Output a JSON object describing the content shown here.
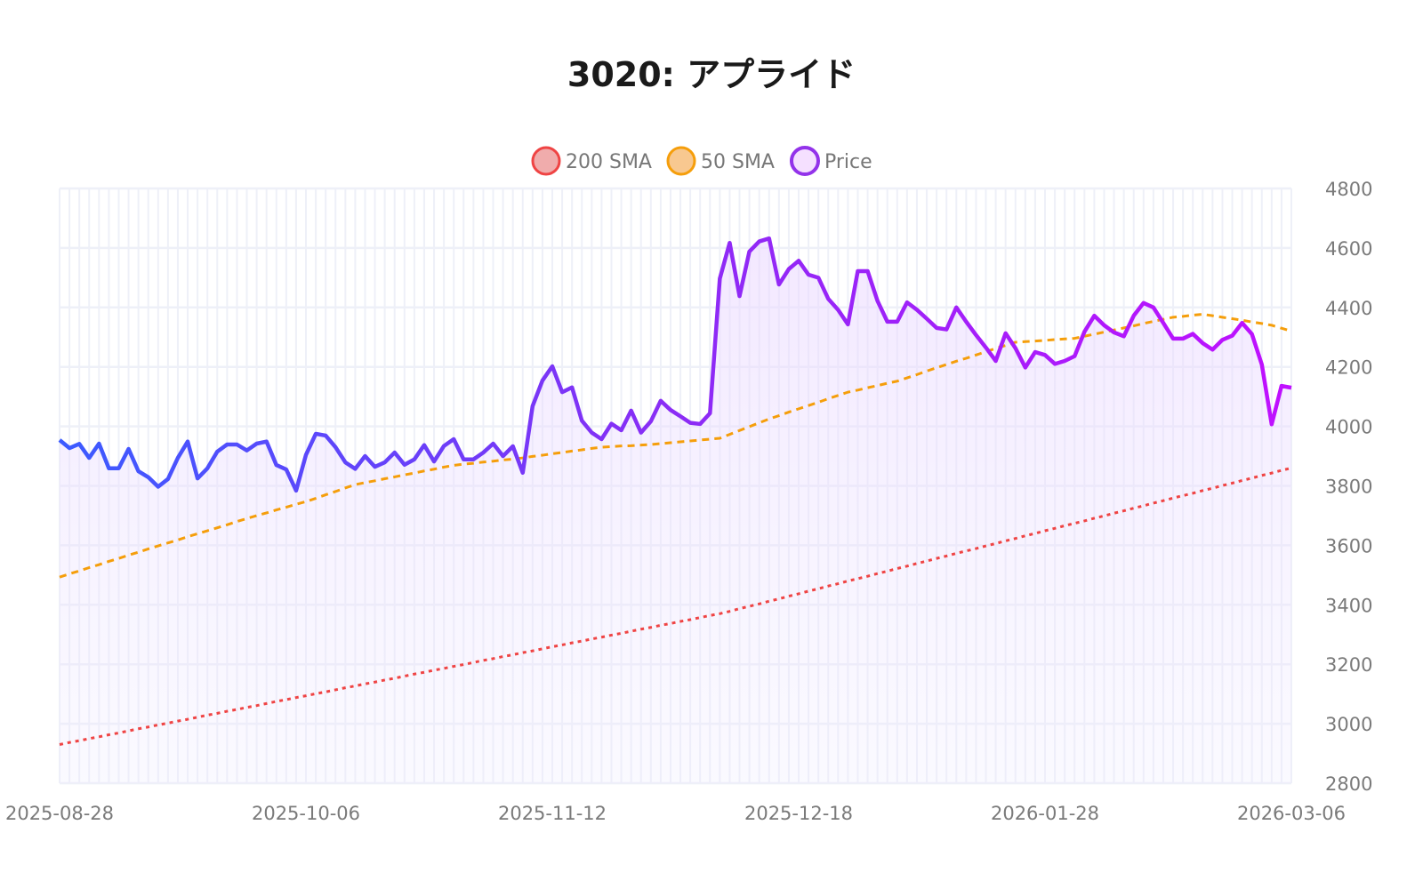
{
  "chart_data": {
    "type": "line",
    "title": "3020: アプライド",
    "xlabel": "",
    "ylabel": "",
    "ylim": [
      2800,
      4800
    ],
    "yticks": [
      "2800",
      "3000",
      "3200",
      "3400",
      "3600",
      "3800",
      "4000",
      "4200",
      "4400",
      "4600",
      "4800"
    ],
    "xtick_labels": [
      "2025-08-28",
      "2025-10-06",
      "2025-11-12",
      "2025-12-18",
      "2026-01-28",
      "2026-03-06"
    ],
    "x_first": "2025-08-28",
    "x_last": "2026-03-06",
    "grid": true,
    "legend_position": "top-center",
    "legend": [
      "200 SMA",
      "50 SMA",
      "Price"
    ],
    "series": [
      {
        "name": "200 SMA",
        "color": "#ef4444",
        "style": "dotted",
        "values": [
          2930,
          2937,
          2943,
          2950,
          2956,
          2963,
          2969,
          2976,
          2983,
          2989,
          2996,
          3002,
          3009,
          3015,
          3022,
          3029,
          3035,
          3042,
          3048,
          3055,
          3061,
          3068,
          3075,
          3081,
          3088,
          3094,
          3101,
          3107,
          3114,
          3121,
          3127,
          3134,
          3140,
          3147,
          3153,
          3160,
          3167,
          3173,
          3180,
          3186,
          3193,
          3199,
          3206,
          3213,
          3219,
          3226,
          3232,
          3239,
          3245,
          3252,
          3259,
          3265,
          3272,
          3278,
          3285,
          3291,
          3298,
          3304,
          3311,
          3318,
          3324,
          3331,
          3337,
          3344,
          3350,
          3357,
          3364,
          3370,
          3378,
          3387,
          3395,
          3403,
          3412,
          3420,
          3429,
          3437,
          3446,
          3454,
          3463,
          3471,
          3480,
          3488,
          3496,
          3505,
          3513,
          3522,
          3530,
          3539,
          3547,
          3556,
          3564,
          3573,
          3581,
          3589,
          3598,
          3606,
          3615,
          3623,
          3632,
          3640,
          3649,
          3657,
          3666,
          3674,
          3682,
          3691,
          3699,
          3708,
          3716,
          3725,
          3733,
          3742,
          3750,
          3759,
          3767,
          3775,
          3784,
          3792,
          3801,
          3809,
          3818,
          3826,
          3835,
          3843,
          3852,
          3860
        ]
      },
      {
        "name": "50 SMA",
        "color": "#f59e0b",
        "style": "dashed",
        "values": [
          3493,
          3504,
          3514,
          3525,
          3535,
          3546,
          3556,
          3567,
          3577,
          3588,
          3598,
          3608,
          3618,
          3629,
          3639,
          3649,
          3659,
          3669,
          3680,
          3690,
          3700,
          3709,
          3719,
          3728,
          3738,
          3747,
          3758,
          3770,
          3781,
          3793,
          3804,
          3811,
          3817,
          3824,
          3830,
          3837,
          3843,
          3850,
          3856,
          3863,
          3869,
          3873,
          3876,
          3880,
          3883,
          3887,
          3890,
          3894,
          3899,
          3903,
          3908,
          3912,
          3917,
          3921,
          3926,
          3930,
          3932,
          3934,
          3935,
          3937,
          3939,
          3942,
          3945,
          3948,
          3951,
          3954,
          3957,
          3960,
          3973,
          3986,
          3999,
          4012,
          4025,
          4036,
          4048,
          4059,
          4070,
          4081,
          4093,
          4104,
          4115,
          4122,
          4130,
          4137,
          4145,
          4152,
          4163,
          4174,
          4186,
          4197,
          4208,
          4219,
          4229,
          4240,
          4251,
          4262,
          4272,
          4283,
          4285,
          4287,
          4289,
          4292,
          4294,
          4296,
          4303,
          4310,
          4317,
          4324,
          4331,
          4338,
          4346,
          4353,
          4360,
          4367,
          4370,
          4374,
          4377,
          4372,
          4367,
          4362,
          4357,
          4351,
          4346,
          4340,
          4330,
          4320
        ]
      },
      {
        "name": "Price",
        "color": "#9333ea",
        "style": "solid",
        "values": [
          3954,
          3927,
          3941,
          3894,
          3942,
          3859,
          3859,
          3924,
          3849,
          3829,
          3797,
          3823,
          3894,
          3949,
          3825,
          3859,
          3915,
          3939,
          3939,
          3919,
          3942,
          3949,
          3870,
          3855,
          3784,
          3904,
          3975,
          3969,
          3930,
          3879,
          3857,
          3900,
          3864,
          3879,
          3912,
          3871,
          3889,
          3937,
          3882,
          3934,
          3957,
          3889,
          3889,
          3912,
          3942,
          3900,
          3933,
          3844,
          4068,
          4154,
          4202,
          4115,
          4131,
          4019,
          3979,
          3957,
          4009,
          3987,
          4053,
          3979,
          4017,
          4086,
          4055,
          4034,
          4012,
          4008,
          4044,
          4497,
          4617,
          4438,
          4588,
          4622,
          4632,
          4477,
          4529,
          4557,
          4510,
          4500,
          4429,
          4392,
          4343,
          4522,
          4522,
          4422,
          4352,
          4352,
          4417,
          4392,
          4362,
          4331,
          4326,
          4400,
          4352,
          4307,
          4265,
          4220,
          4313,
          4263,
          4198,
          4250,
          4240,
          4210,
          4220,
          4236,
          4318,
          4372,
          4340,
          4316,
          4303,
          4372,
          4415,
          4400,
          4348,
          4295,
          4295,
          4311,
          4280,
          4258,
          4291,
          4305,
          4348,
          4310,
          4208,
          4007,
          4136,
          4130
        ]
      }
    ],
    "price_gradient": [
      "#3b5bff",
      "#8b2cf5",
      "#c010ff"
    ]
  }
}
